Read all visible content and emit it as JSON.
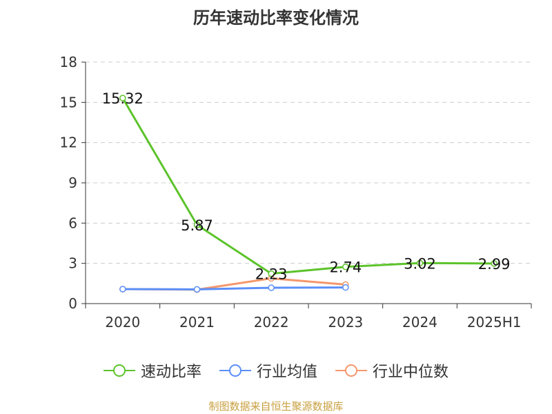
{
  "page": {
    "title": "历年速动比率变化情况",
    "source": "制图数据来自恒生聚源数据库"
  },
  "colors": {
    "text": "#333333",
    "axis": "#333333",
    "grid": "#cccccc"
  },
  "chart_data": {
    "type": "line",
    "title": "历年速动比率变化情况",
    "categories": [
      "2020",
      "2021",
      "2022",
      "2023",
      "2024",
      "2025H1"
    ],
    "ylim": [
      0,
      18
    ],
    "yticks": [
      0,
      3,
      6,
      9,
      12,
      15,
      18
    ],
    "grid": true,
    "legend_position": "bottom",
    "series": [
      {
        "name": "速动比率",
        "color": "#5cc32b",
        "values": [
          15.32,
          5.87,
          2.23,
          2.74,
          3.02,
          2.99
        ],
        "labels": [
          "15.32",
          "5.87",
          "2.23",
          "2.74",
          "3.02",
          "2.99"
        ]
      },
      {
        "name": "行业均值",
        "color": "#5b8ff9",
        "values": [
          1.08,
          1.06,
          1.18,
          1.2,
          null,
          null
        ]
      },
      {
        "name": "行业中位数",
        "color": "#f4976c",
        "values": [
          1.08,
          1.04,
          1.88,
          1.42,
          null,
          null
        ]
      }
    ]
  }
}
